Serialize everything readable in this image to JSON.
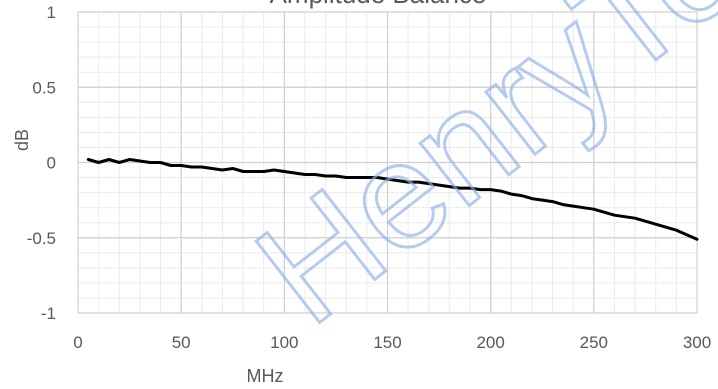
{
  "chart_data": {
    "type": "line",
    "title": "Amplitude Balance",
    "xlabel": "MHz",
    "ylabel": "dB",
    "xlim": [
      0,
      300
    ],
    "ylim": [
      -1,
      1
    ],
    "x_ticks": [
      0,
      50,
      100,
      150,
      200,
      250,
      300
    ],
    "y_ticks": [
      -1,
      -0.5,
      0,
      0.5,
      1
    ],
    "y_tick_labels": [
      "-1",
      "-0.5",
      "0",
      "0.5",
      "1"
    ],
    "grid": true,
    "legend": "none",
    "watermark": "HenryTe",
    "series": [
      {
        "color": "#000000",
        "points": [
          [
            5,
            0.02
          ],
          [
            10,
            0.0
          ],
          [
            15,
            0.02
          ],
          [
            20,
            0.0
          ],
          [
            25,
            0.02
          ],
          [
            30,
            0.01
          ],
          [
            35,
            0.0
          ],
          [
            40,
            0.0
          ],
          [
            45,
            -0.02
          ],
          [
            50,
            -0.02
          ],
          [
            55,
            -0.03
          ],
          [
            60,
            -0.03
          ],
          [
            65,
            -0.04
          ],
          [
            70,
            -0.05
          ],
          [
            75,
            -0.04
          ],
          [
            80,
            -0.06
          ],
          [
            85,
            -0.06
          ],
          [
            90,
            -0.06
          ],
          [
            95,
            -0.05
          ],
          [
            100,
            -0.06
          ],
          [
            105,
            -0.07
          ],
          [
            110,
            -0.08
          ],
          [
            115,
            -0.08
          ],
          [
            120,
            -0.09
          ],
          [
            125,
            -0.09
          ],
          [
            130,
            -0.1
          ],
          [
            135,
            -0.1
          ],
          [
            140,
            -0.1
          ],
          [
            145,
            -0.1
          ],
          [
            150,
            -0.11
          ],
          [
            155,
            -0.12
          ],
          [
            160,
            -0.13
          ],
          [
            165,
            -0.13
          ],
          [
            170,
            -0.14
          ],
          [
            175,
            -0.15
          ],
          [
            180,
            -0.16
          ],
          [
            185,
            -0.17
          ],
          [
            190,
            -0.17
          ],
          [
            195,
            -0.18
          ],
          [
            200,
            -0.18
          ],
          [
            205,
            -0.19
          ],
          [
            210,
            -0.21
          ],
          [
            215,
            -0.22
          ],
          [
            220,
            -0.24
          ],
          [
            225,
            -0.25
          ],
          [
            230,
            -0.26
          ],
          [
            235,
            -0.28
          ],
          [
            240,
            -0.29
          ],
          [
            245,
            -0.3
          ],
          [
            250,
            -0.31
          ],
          [
            255,
            -0.33
          ],
          [
            260,
            -0.35
          ],
          [
            265,
            -0.36
          ],
          [
            270,
            -0.37
          ],
          [
            275,
            -0.39
          ],
          [
            280,
            -0.41
          ],
          [
            285,
            -0.43
          ],
          [
            290,
            -0.45
          ],
          [
            295,
            -0.48
          ],
          [
            300,
            -0.51
          ]
        ]
      }
    ]
  }
}
